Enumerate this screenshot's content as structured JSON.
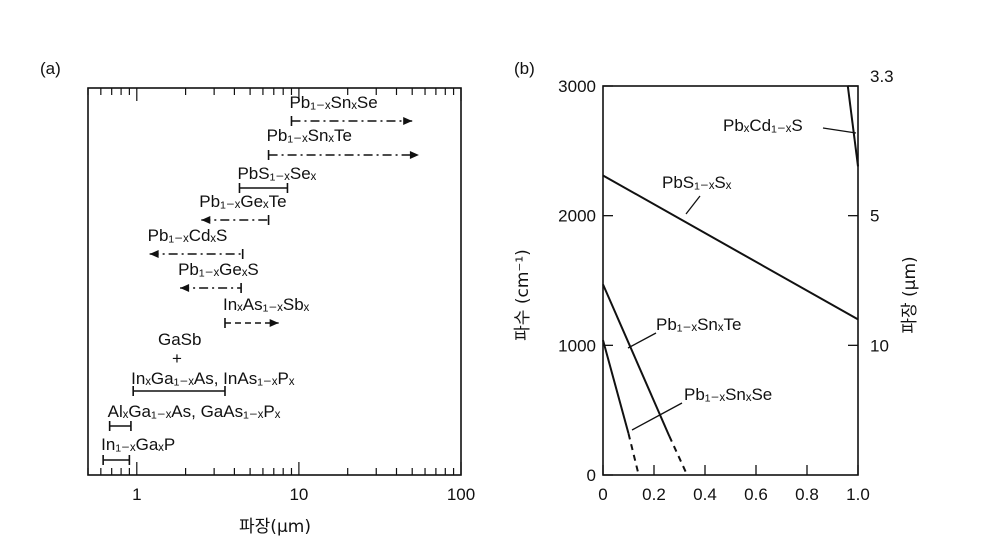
{
  "chart_data": [
    {
      "panel_label": "(a)",
      "type": "range",
      "xlabel": "파장(μm)",
      "xscale": "log",
      "xlim": [
        0.5,
        100
      ],
      "xticks": [
        "1",
        "10",
        "100"
      ],
      "items": [
        {
          "label": "Pb₁₋ₓSnₓSe",
          "x_start": 9,
          "x_end": 50,
          "style": "dash-dot",
          "arrow": "right"
        },
        {
          "label": "Pb₁₋ₓSnₓTe",
          "x_start": 6.5,
          "x_end": 55,
          "style": "dash-dot",
          "arrow": "right"
        },
        {
          "label": "PbS₁₋ₓSeₓ",
          "x_start": 4.3,
          "x_end": 8.5,
          "style": "solid",
          "arrow": "none"
        },
        {
          "label": "Pb₁₋ₓGeₓTe",
          "x_start": 2.5,
          "x_end": 6.5,
          "style": "dash-dot",
          "arrow": "left"
        },
        {
          "label": "Pb₁₋ₓCdₓS",
          "x_start": 1.2,
          "x_end": 4.5,
          "style": "dash-dot",
          "arrow": "left"
        },
        {
          "label": "Pb₁₋ₓGeₓS",
          "x_start": 1.85,
          "x_end": 4.4,
          "style": "dash-dot",
          "arrow": "left"
        },
        {
          "label": "InₓAs₁₋ₓSbₓ",
          "x_start": 3.5,
          "x_end": 7.5,
          "style": "dashed",
          "arrow": "right"
        },
        {
          "label": "GaSb",
          "x_start": null,
          "x_end": null,
          "style": "none",
          "arrow": "none"
        },
        {
          "label": "+",
          "x_start": null,
          "x_end": null,
          "style": "none",
          "arrow": "none"
        },
        {
          "label": "InₓGa₁₋ₓAs, InAs₁₋ₓPₓ",
          "x_start": 0.95,
          "x_end": 3.5,
          "style": "solid",
          "arrow": "none"
        },
        {
          "label": "AlₓGa₁₋ₓAs, GaAs₁₋ₓPₓ",
          "x_start": 0.68,
          "x_end": 0.92,
          "style": "solid",
          "arrow": "none"
        },
        {
          "label": "In₁₋ₓGaₓP",
          "x_start": 0.62,
          "x_end": 0.9,
          "style": "solid",
          "arrow": "none"
        }
      ]
    },
    {
      "panel_label": "(b)",
      "type": "line",
      "xlim": [
        0,
        1.0
      ],
      "xticks": [
        "0",
        "0.2",
        "0.4",
        "0.6",
        "0.8",
        "1.0"
      ],
      "ylabel": "파수 (cm⁻¹)",
      "ylim": [
        0,
        3000
      ],
      "yticks": [
        "0",
        "1000",
        "2000",
        "3000"
      ],
      "y2label": "파장 (μm)",
      "y2ticks": [
        "3.3",
        "5",
        "10"
      ],
      "series": [
        {
          "name": "PbₓCd₁₋ₓS",
          "x": [
            0.96,
            1.0
          ],
          "y": [
            3000,
            2380
          ],
          "style": "solid"
        },
        {
          "name": "PbS₁₋ₓSₓ",
          "x": [
            0,
            1.0
          ],
          "y": [
            2310,
            1200
          ],
          "style": "solid"
        },
        {
          "name": "Pb₁₋ₓSnₓTe",
          "x": [
            0,
            0.26
          ],
          "y": [
            1470,
            300
          ],
          "style": "solid",
          "extension": {
            "x": [
              0.26,
              0.33
            ],
            "y": [
              300,
              0
            ]
          }
        },
        {
          "name": "Pb₁₋ₓSnₓSe",
          "x": [
            0,
            0.1
          ],
          "y": [
            1040,
            320
          ],
          "style": "solid",
          "extension": {
            "x": [
              0.1,
              0.14
            ],
            "y": [
              320,
              0
            ]
          }
        }
      ]
    }
  ]
}
